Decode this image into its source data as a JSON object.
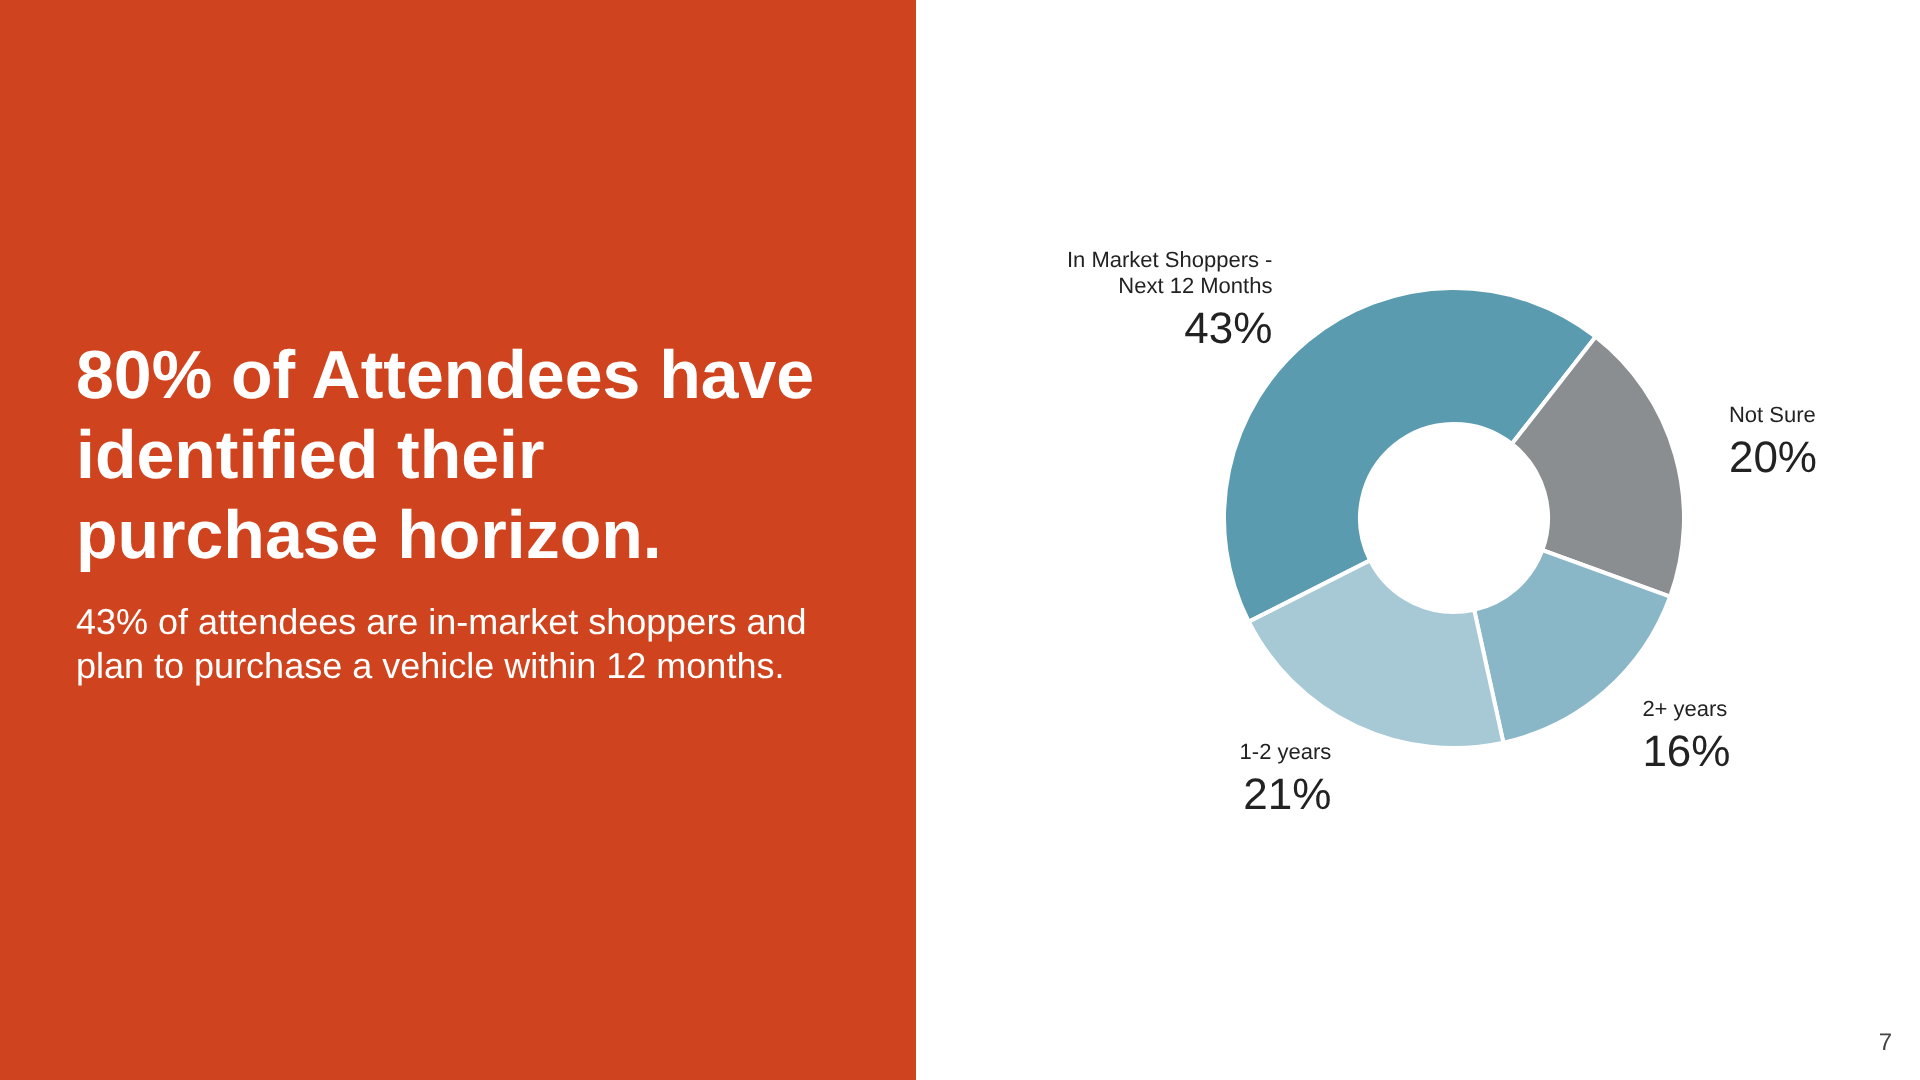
{
  "chart_data": {
    "type": "donut",
    "title": "80% of Attendees have identified their purchase horizon.",
    "subtitle": "43% of attendees are in-market shoppers and plan to purchase a vehicle within 12 months.",
    "annotations": [
      "7"
    ],
    "categories": [
      "In Market Shoppers - Next 12 Months",
      "Not Sure",
      "2+ years",
      "1-2 years"
    ],
    "values": [
      43,
      20,
      16,
      21
    ],
    "value_labels": [
      "43%",
      "20%",
      "16%",
      "21%"
    ],
    "colors": [
      "#5a9bb0",
      "#8b8e90",
      "#8ab7c7",
      "#a7c9d5"
    ],
    "legend": false
  }
}
